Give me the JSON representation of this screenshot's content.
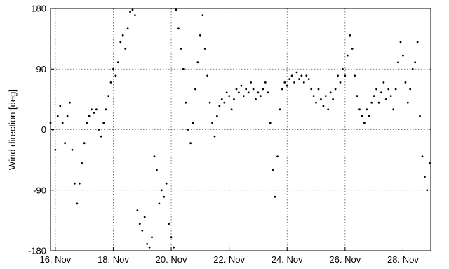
{
  "chart_data": {
    "type": "scatter",
    "title": "",
    "xlabel": "",
    "ylabel": "Wind direction [deg]",
    "ylim": [
      -180,
      180
    ],
    "yticks": [
      -180,
      -90,
      0,
      90,
      180
    ],
    "xlim": [
      "2015-11-15T20:00",
      "2015-11-28T23:00"
    ],
    "xticks": [
      {
        "date": "2015-11-16",
        "label": "16. Nov"
      },
      {
        "date": "2015-11-18",
        "label": "18. Nov"
      },
      {
        "date": "2015-11-20",
        "label": "20. Nov"
      },
      {
        "date": "2015-11-22",
        "label": "22. Nov"
      },
      {
        "date": "2015-11-24",
        "label": "24. Nov"
      },
      {
        "date": "2015-11-26",
        "label": "26. Nov"
      },
      {
        "date": "2015-11-28",
        "label": "28. Nov"
      }
    ],
    "grid": true,
    "grid_style": "dotted",
    "marker_color": "#000000",
    "series": [
      {
        "points": [
          [
            "2015-11-15T20:00",
            10
          ],
          [
            "2015-11-15T22:00",
            0
          ],
          [
            "2015-11-16T00:00",
            -30
          ],
          [
            "2015-11-16T02:00",
            20
          ],
          [
            "2015-11-16T04:00",
            35
          ],
          [
            "2015-11-16T06:00",
            10
          ],
          [
            "2015-11-16T08:00",
            -20
          ],
          [
            "2015-11-16T10:00",
            20
          ],
          [
            "2015-11-16T12:00",
            40
          ],
          [
            "2015-11-16T14:00",
            -30
          ],
          [
            "2015-11-16T16:00",
            -80
          ],
          [
            "2015-11-16T18:00",
            -110
          ],
          [
            "2015-11-16T20:00",
            -80
          ],
          [
            "2015-11-16T22:00",
            -50
          ],
          [
            "2015-11-17T00:00",
            -20
          ],
          [
            "2015-11-17T02:00",
            10
          ],
          [
            "2015-11-17T04:00",
            20
          ],
          [
            "2015-11-17T06:00",
            30
          ],
          [
            "2015-11-17T08:00",
            25
          ],
          [
            "2015-11-17T10:00",
            30
          ],
          [
            "2015-11-17T12:00",
            0
          ],
          [
            "2015-11-17T14:00",
            -10
          ],
          [
            "2015-11-17T16:00",
            10
          ],
          [
            "2015-11-17T18:00",
            30
          ],
          [
            "2015-11-17T20:00",
            50
          ],
          [
            "2015-11-17T22:00",
            70
          ],
          [
            "2015-11-18T00:00",
            90
          ],
          [
            "2015-11-18T02:00",
            80
          ],
          [
            "2015-11-18T04:00",
            100
          ],
          [
            "2015-11-18T06:00",
            130
          ],
          [
            "2015-11-18T08:00",
            140
          ],
          [
            "2015-11-18T10:00",
            120
          ],
          [
            "2015-11-18T12:00",
            150
          ],
          [
            "2015-11-18T14:00",
            175
          ],
          [
            "2015-11-18T16:00",
            178
          ],
          [
            "2015-11-18T18:00",
            170
          ],
          [
            "2015-11-18T20:00",
            -120
          ],
          [
            "2015-11-18T22:00",
            -140
          ],
          [
            "2015-11-19T00:00",
            -150
          ],
          [
            "2015-11-19T02:00",
            -130
          ],
          [
            "2015-11-19T04:00",
            -170
          ],
          [
            "2015-11-19T06:00",
            -175
          ],
          [
            "2015-11-19T08:00",
            -160
          ],
          [
            "2015-11-19T10:00",
            -40
          ],
          [
            "2015-11-19T12:00",
            -60
          ],
          [
            "2015-11-19T14:00",
            -110
          ],
          [
            "2015-11-19T16:00",
            -90
          ],
          [
            "2015-11-19T18:00",
            -100
          ],
          [
            "2015-11-19T20:00",
            -80
          ],
          [
            "2015-11-19T22:00",
            -140
          ],
          [
            "2015-11-20T00:00",
            -160
          ],
          [
            "2015-11-20T02:00",
            -175
          ],
          [
            "2015-11-20T04:00",
            178
          ],
          [
            "2015-11-20T06:00",
            150
          ],
          [
            "2015-11-20T08:00",
            120
          ],
          [
            "2015-11-20T10:00",
            90
          ],
          [
            "2015-11-20T12:00",
            40
          ],
          [
            "2015-11-20T14:00",
            0
          ],
          [
            "2015-11-20T16:00",
            -20
          ],
          [
            "2015-11-20T18:00",
            10
          ],
          [
            "2015-11-20T20:00",
            60
          ],
          [
            "2015-11-20T22:00",
            100
          ],
          [
            "2015-11-21T00:00",
            140
          ],
          [
            "2015-11-21T02:00",
            170
          ],
          [
            "2015-11-21T04:00",
            120
          ],
          [
            "2015-11-21T06:00",
            80
          ],
          [
            "2015-11-21T08:00",
            40
          ],
          [
            "2015-11-21T10:00",
            10
          ],
          [
            "2015-11-21T12:00",
            -10
          ],
          [
            "2015-11-21T14:00",
            20
          ],
          [
            "2015-11-21T16:00",
            35
          ],
          [
            "2015-11-21T18:00",
            45
          ],
          [
            "2015-11-21T20:00",
            40
          ],
          [
            "2015-11-21T22:00",
            55
          ],
          [
            "2015-11-22T00:00",
            50
          ],
          [
            "2015-11-22T02:00",
            30
          ],
          [
            "2015-11-22T04:00",
            45
          ],
          [
            "2015-11-22T06:00",
            60
          ],
          [
            "2015-11-22T08:00",
            55
          ],
          [
            "2015-11-22T10:00",
            65
          ],
          [
            "2015-11-22T12:00",
            50
          ],
          [
            "2015-11-22T14:00",
            60
          ],
          [
            "2015-11-22T16:00",
            55
          ],
          [
            "2015-11-22T18:00",
            70
          ],
          [
            "2015-11-22T20:00",
            60
          ],
          [
            "2015-11-22T22:00",
            45
          ],
          [
            "2015-11-23T00:00",
            55
          ],
          [
            "2015-11-23T02:00",
            50
          ],
          [
            "2015-11-23T04:00",
            60
          ],
          [
            "2015-11-23T06:00",
            70
          ],
          [
            "2015-11-23T08:00",
            55
          ],
          [
            "2015-11-23T10:00",
            10
          ],
          [
            "2015-11-23T12:00",
            -60
          ],
          [
            "2015-11-23T14:00",
            -100
          ],
          [
            "2015-11-23T16:00",
            -40
          ],
          [
            "2015-11-23T18:00",
            30
          ],
          [
            "2015-11-23T20:00",
            60
          ],
          [
            "2015-11-23T22:00",
            70
          ],
          [
            "2015-11-24T00:00",
            65
          ],
          [
            "2015-11-24T02:00",
            75
          ],
          [
            "2015-11-24T04:00",
            80
          ],
          [
            "2015-11-24T06:00",
            70
          ],
          [
            "2015-11-24T08:00",
            85
          ],
          [
            "2015-11-24T10:00",
            75
          ],
          [
            "2015-11-24T12:00",
            80
          ],
          [
            "2015-11-24T14:00",
            70
          ],
          [
            "2015-11-24T16:00",
            80
          ],
          [
            "2015-11-24T18:00",
            75
          ],
          [
            "2015-11-24T20:00",
            60
          ],
          [
            "2015-11-24T22:00",
            50
          ],
          [
            "2015-11-25T00:00",
            40
          ],
          [
            "2015-11-25T02:00",
            60
          ],
          [
            "2015-11-25T04:00",
            45
          ],
          [
            "2015-11-25T06:00",
            35
          ],
          [
            "2015-11-25T08:00",
            50
          ],
          [
            "2015-11-25T10:00",
            30
          ],
          [
            "2015-11-25T12:00",
            55
          ],
          [
            "2015-11-25T14:00",
            45
          ],
          [
            "2015-11-25T16:00",
            60
          ],
          [
            "2015-11-25T18:00",
            80
          ],
          [
            "2015-11-25T20:00",
            70
          ],
          [
            "2015-11-25T22:00",
            90
          ],
          [
            "2015-11-26T00:00",
            80
          ],
          [
            "2015-11-26T02:00",
            110
          ],
          [
            "2015-11-26T04:00",
            140
          ],
          [
            "2015-11-26T06:00",
            120
          ],
          [
            "2015-11-26T08:00",
            80
          ],
          [
            "2015-11-26T10:00",
            50
          ],
          [
            "2015-11-26T12:00",
            30
          ],
          [
            "2015-11-26T14:00",
            20
          ],
          [
            "2015-11-26T16:00",
            10
          ],
          [
            "2015-11-26T18:00",
            30
          ],
          [
            "2015-11-26T20:00",
            20
          ],
          [
            "2015-11-26T22:00",
            40
          ],
          [
            "2015-11-27T00:00",
            50
          ],
          [
            "2015-11-27T02:00",
            60
          ],
          [
            "2015-11-27T04:00",
            40
          ],
          [
            "2015-11-27T06:00",
            55
          ],
          [
            "2015-11-27T08:00",
            70
          ],
          [
            "2015-11-27T10:00",
            45
          ],
          [
            "2015-11-27T12:00",
            60
          ],
          [
            "2015-11-27T14:00",
            50
          ],
          [
            "2015-11-27T16:00",
            30
          ],
          [
            "2015-11-27T18:00",
            60
          ],
          [
            "2015-11-27T20:00",
            100
          ],
          [
            "2015-11-27T22:00",
            130
          ],
          [
            "2015-11-28T00:00",
            110
          ],
          [
            "2015-11-28T02:00",
            70
          ],
          [
            "2015-11-28T04:00",
            40
          ],
          [
            "2015-11-28T06:00",
            60
          ],
          [
            "2015-11-28T08:00",
            90
          ],
          [
            "2015-11-28T10:00",
            100
          ],
          [
            "2015-11-28T12:00",
            130
          ],
          [
            "2015-11-28T14:00",
            20
          ],
          [
            "2015-11-28T16:00",
            -40
          ],
          [
            "2015-11-28T18:00",
            -70
          ],
          [
            "2015-11-28T20:00",
            -90
          ],
          [
            "2015-11-28T22:00",
            -50
          ]
        ]
      }
    ]
  }
}
